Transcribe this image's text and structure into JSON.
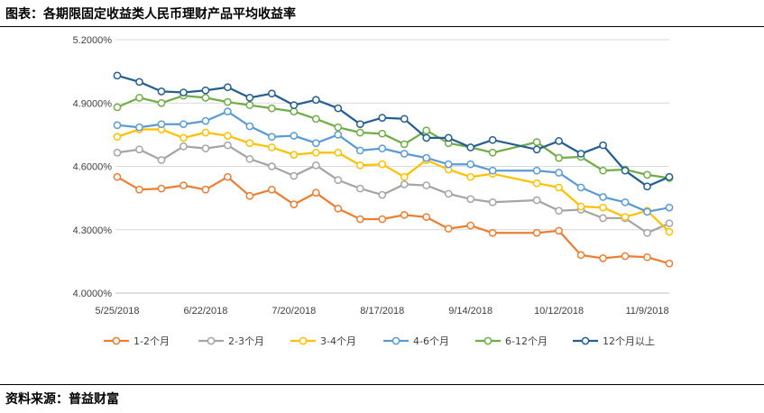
{
  "header": {
    "title": "图表：各期限固定收益类人民币理财产品平均收益率"
  },
  "footer": {
    "source": "资料来源：普益财富"
  },
  "chart_data": {
    "type": "line",
    "title": "",
    "xlabel": "",
    "ylabel": "",
    "ylim": [
      4.0,
      5.2
    ],
    "yticks": [
      "4.0000%",
      "4.3000%",
      "4.6000%",
      "4.9000%",
      "5.2000%"
    ],
    "ytick_values": [
      4.0,
      4.3,
      4.6,
      4.9,
      5.2
    ],
    "xtick_labels": [
      "5/25/2018",
      "6/22/2018",
      "7/20/2018",
      "8/17/2018",
      "9/14/2018",
      "10/12/2018",
      "11/9/2018"
    ],
    "xtick_index": [
      0,
      4,
      8,
      12,
      16,
      20,
      24
    ],
    "x": [
      "5/25/2018",
      "6/1/2018",
      "6/8/2018",
      "6/15/2018",
      "6/22/2018",
      "6/29/2018",
      "7/6/2018",
      "7/13/2018",
      "7/20/2018",
      "7/27/2018",
      "8/3/2018",
      "8/10/2018",
      "8/17/2018",
      "8/24/2018",
      "8/31/2018",
      "9/7/2018",
      "9/14/2018",
      "9/21/2018",
      "9/28/2018",
      "10/5/2018",
      "10/12/2018",
      "10/19/2018",
      "10/26/2018",
      "11/2/2018",
      "11/9/2018",
      "11/16/2018"
    ],
    "grid": "horizontal",
    "legend_position": "bottom",
    "series": [
      {
        "name": "1-2个月",
        "color": "#ED7D31",
        "values": [
          4.55,
          4.49,
          4.495,
          4.51,
          4.49,
          4.55,
          4.46,
          4.49,
          4.42,
          4.475,
          4.4,
          4.35,
          4.35,
          4.37,
          4.36,
          4.305,
          4.32,
          4.285,
          null,
          4.285,
          4.295,
          4.18,
          4.165,
          4.175,
          4.17,
          4.14
        ]
      },
      {
        "name": "2-3个月",
        "color": "#A5A5A5",
        "values": [
          4.665,
          4.68,
          4.63,
          4.695,
          4.685,
          4.7,
          4.635,
          4.6,
          4.555,
          4.605,
          4.535,
          4.495,
          4.465,
          4.515,
          4.51,
          4.47,
          4.445,
          4.43,
          null,
          4.44,
          4.39,
          4.395,
          4.355,
          4.355,
          4.285,
          4.33
        ]
      },
      {
        "name": "3-4个月",
        "color": "#FFC000",
        "values": [
          4.74,
          4.775,
          4.775,
          4.735,
          4.76,
          4.745,
          4.71,
          4.69,
          4.655,
          4.665,
          4.665,
          4.605,
          4.61,
          4.55,
          4.63,
          4.585,
          4.55,
          4.565,
          null,
          4.52,
          4.5,
          4.41,
          4.405,
          4.36,
          4.39,
          4.29
        ]
      },
      {
        "name": "4-6个月",
        "color": "#5B9BD5",
        "values": [
          4.795,
          4.785,
          4.8,
          4.8,
          4.815,
          4.86,
          4.79,
          4.74,
          4.745,
          4.71,
          4.75,
          4.675,
          4.685,
          4.66,
          4.64,
          4.61,
          4.61,
          4.58,
          null,
          4.58,
          4.57,
          4.5,
          4.455,
          4.43,
          4.385,
          4.405
        ]
      },
      {
        "name": "6-12个月",
        "color": "#70AD47",
        "values": [
          4.88,
          4.925,
          4.9,
          4.935,
          4.925,
          4.905,
          4.89,
          4.875,
          4.86,
          4.825,
          4.785,
          4.76,
          4.755,
          4.705,
          4.77,
          4.71,
          4.69,
          4.665,
          null,
          4.715,
          4.64,
          4.645,
          4.58,
          4.585,
          4.56,
          4.545
        ]
      },
      {
        "name": "12个月以上",
        "color": "#255E91",
        "values": [
          5.03,
          5.0,
          4.955,
          4.95,
          4.96,
          4.975,
          4.925,
          4.945,
          4.89,
          4.915,
          4.875,
          4.8,
          4.83,
          4.825,
          4.735,
          4.735,
          4.69,
          4.725,
          null,
          4.68,
          4.72,
          4.66,
          4.7,
          4.58,
          4.505,
          4.55
        ]
      }
    ]
  }
}
